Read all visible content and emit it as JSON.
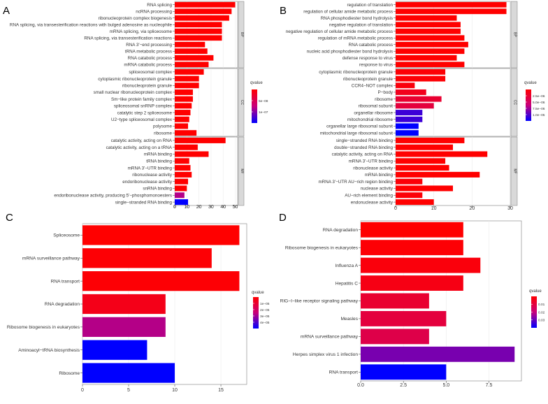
{
  "chart_data": [
    {
      "panel": "A",
      "type": "bar",
      "orientation": "horizontal",
      "xticks": [
        "0",
        "10",
        "20",
        "30",
        "40",
        "50"
      ],
      "xlim": [
        0,
        52
      ],
      "legend": {
        "title": "qvalue",
        "ticks": [
          "5e−08",
          "1e−07"
        ],
        "colors": [
          "#ff0000",
          "#0000ff"
        ]
      },
      "facets": [
        {
          "name": "BP",
          "categories": [
            "RNA splicing",
            "ncRNA processing",
            "ribonucleoprotein complex biogenesis",
            "RNA splicing, via transesterification reactions with bulged adenosine as nucleophile",
            "mRNA splicing, via spliceosome",
            "RNA splicing, via transesterification reactions",
            "RNA 3'−end processing",
            "tRNA metabolic process",
            "RNA catabolic process",
            "mRNA catabolic process"
          ],
          "values": [
            50,
            47,
            45,
            39,
            39,
            39,
            25,
            27,
            32,
            28
          ],
          "q": [
            0,
            0,
            0,
            0,
            0,
            0,
            0,
            0,
            0,
            0
          ]
        },
        {
          "name": "CC",
          "categories": [
            "spliceosomal complex",
            "cytoplasmic ribonucleoprotein granule",
            "ribonucleoprotein granule",
            "small nuclear ribonucleoprotein complex",
            "Sm−like protein family complex",
            "spliceosomal snRNP complex",
            "catalytic step 2 spliceosome",
            "U2−type spliceosomal complex",
            "polysome",
            "ribosome"
          ],
          "values": [
            24,
            20,
            20,
            15,
            15,
            14,
            13,
            12,
            11,
            18
          ],
          "q": [
            0,
            0,
            0,
            0,
            0,
            0,
            0,
            0,
            0,
            0
          ]
        },
        {
          "name": "MF",
          "categories": [
            "catalytic activity, acting on RNA",
            "catalytic activity, acting on a tRNA",
            "mRNA binding",
            "tRNA binding",
            "mRNA 3'−UTR binding",
            "ribonuclease activity",
            "endoribonuclease activity",
            "snRNA binding",
            "endoribonuclease activity, producing 5'−phosphomonoesters",
            "single−stranded RNA binding"
          ],
          "values": [
            42,
            19,
            28,
            12,
            13,
            14,
            11,
            10,
            8,
            11
          ],
          "q": [
            0,
            0,
            0,
            0,
            0,
            0,
            0,
            0,
            0.55,
            1
          ]
        }
      ]
    },
    {
      "panel": "B",
      "type": "bar",
      "orientation": "horizontal",
      "xticks": [
        "0",
        "10",
        "20",
        "30"
      ],
      "xlim": [
        0,
        30
      ],
      "legend": {
        "title": "qvalue",
        "ticks": [
          "2.5e−06",
          "5.0e−06",
          "7.5e−06",
          "1.0e−05"
        ],
        "colors": [
          "#ff0000",
          "#0000ff"
        ]
      },
      "facets": [
        {
          "name": "BP",
          "categories": [
            "regulation of translation",
            "regulation of cellular amide metabolic process",
            "RNA phosphodiester bond hydrolysis",
            "negative regulation of translation",
            "negative regulation of cellular amide metabolic process",
            "regulation of mRNA metabolic process",
            "RNA catabolic process",
            "nucleic acid phosphodiester bond hydrolysis",
            "defense response to virus",
            "response to virus"
          ],
          "values": [
            29,
            29,
            16,
            17,
            17,
            18,
            19,
            18,
            16,
            18
          ],
          "q": [
            0,
            0,
            0,
            0,
            0,
            0,
            0,
            0,
            0,
            0
          ]
        },
        {
          "name": "CC",
          "categories": [
            "cytoplasmic ribonucleoprotein granule",
            "ribonucleoprotein granule",
            "CCR4−NOT complex",
            "P−body",
            "ribosome",
            "ribosomal subunit",
            "organellar ribosome",
            "mitochondrial ribosome",
            "organellar large ribosomal subunit",
            "mitochondrial large ribosomal subunit"
          ],
          "values": [
            13,
            13,
            5,
            8,
            12,
            10,
            7,
            7,
            6,
            6
          ],
          "q": [
            0.02,
            0.02,
            0.05,
            0.12,
            0.2,
            0.25,
            0.85,
            0.85,
            1,
            1
          ]
        },
        {
          "name": "MF",
          "categories": [
            "single−stranded RNA binding",
            "double−stranded RNA binding",
            "catalytic activity, acting on RNA",
            "mRNA 3'−UTR binding",
            "ribonuclease activity",
            "mRNA binding",
            "mRNA 3'−UTR AU−rich region binding",
            "nuclease activity",
            "AU−rich element binding",
            "endonuclease activity"
          ],
          "values": [
            18,
            15,
            24,
            13,
            14,
            22,
            7,
            15,
            7,
            10
          ],
          "q": [
            0,
            0,
            0,
            0,
            0,
            0,
            0.03,
            0,
            0.03,
            0
          ]
        }
      ]
    },
    {
      "panel": "C",
      "type": "bar",
      "orientation": "horizontal",
      "categories": [
        "Spliceosome",
        "mRNA surveillance pathway",
        "RNA transport",
        "RNA degradation",
        "Ribosome biogenesis in eukaryotes",
        "Aminoacyl−tRNA biosynthesis",
        "Ribosome"
      ],
      "values": [
        17,
        14,
        17,
        9,
        9,
        7,
        10
      ],
      "q": [
        0,
        0.02,
        0.02,
        0.1,
        0.55,
        1,
        1
      ],
      "xticks": [
        "0",
        "5",
        "10",
        "15"
      ],
      "xlim": [
        0,
        17.8
      ],
      "legend": {
        "title": "qvalue",
        "ticks": [
          "1e−05",
          "2e−05",
          "3e−05",
          "4e−05"
        ],
        "colors": [
          "#ff0000",
          "#0000ff"
        ]
      }
    },
    {
      "panel": "D",
      "type": "bar",
      "orientation": "horizontal",
      "categories": [
        "RNA degradation",
        "Ribosome biogenesis in eukaryotes",
        "Influenza A",
        "Hepatitis C",
        "RIG−I−like receptor signaling pathway",
        "Measles",
        "mRNA surveillance pathway",
        "Herpes simplex virus 1 infection",
        "RNA transport"
      ],
      "values": [
        6,
        6,
        7,
        6,
        4,
        5,
        4,
        9,
        5
      ],
      "q": [
        0,
        0.02,
        0.05,
        0.08,
        0.2,
        0.25,
        0.3,
        0.7,
        1
      ],
      "xticks": [
        "0.0",
        "2.5",
        "5.0",
        "7.5"
      ],
      "xlim": [
        0,
        9.4
      ],
      "legend": {
        "title": "qvalue",
        "ticks": [
          "0.01",
          "0.02",
          "0.03"
        ],
        "colors": [
          "#ff0000",
          "#0000ff"
        ]
      }
    }
  ],
  "panel_labels": [
    "A",
    "B",
    "C",
    "D"
  ]
}
